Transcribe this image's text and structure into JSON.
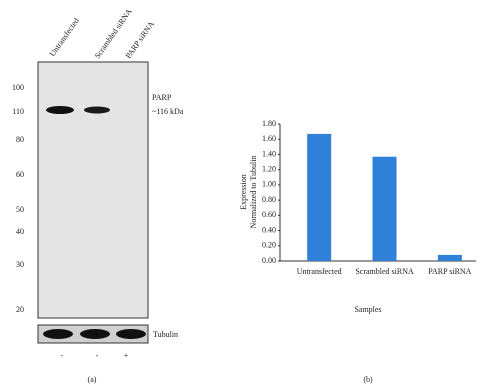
{
  "blot": {
    "lanes": [
      "Untransfected",
      "Scrambled siRNA",
      "PARP siRNA"
    ],
    "markers": [
      "100",
      "110",
      "80",
      "60",
      "50",
      "40",
      "30",
      "20"
    ],
    "band_label": "PARP",
    "band_size": "~116 kDa",
    "loading_control": "Tubulin",
    "treatment": [
      "-",
      "-",
      "+"
    ],
    "panel": "(a)"
  },
  "chart_data": {
    "type": "bar",
    "panel": "(b)",
    "ylabel": [
      "Expression",
      "Normalized to Tubulin"
    ],
    "xlabel": "Samples",
    "categories": [
      "Untransfected",
      "Scrambled siRNA",
      "PARP siRNA"
    ],
    "values": [
      1.67,
      1.37,
      0.08
    ],
    "color": "#2f80d8",
    "ylim": [
      0,
      1.8
    ],
    "yticks": [
      {
        "value": 0,
        "label": "0.00"
      },
      {
        "value": 0.2,
        "label": "0.20"
      },
      {
        "value": 0.4,
        "label": "0.40"
      },
      {
        "value": 0.6,
        "label": "0.60"
      },
      {
        "value": 0.8,
        "label": "0.80"
      },
      {
        "value": 1.0,
        "label": "1.00"
      },
      {
        "value": 1.2,
        "label": "1.20"
      },
      {
        "value": 1.4,
        "label": "1.40"
      },
      {
        "value": 1.6,
        "label": "1.60"
      },
      {
        "value": 1.8,
        "label": "1.80"
      }
    ]
  }
}
